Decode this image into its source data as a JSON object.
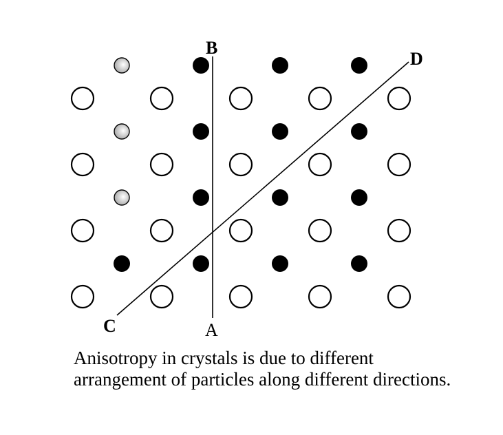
{
  "labels": {
    "a": "A",
    "b": "B",
    "c": "C",
    "d": "D"
  },
  "caption": "Anisotropy in crystals is due to different arrangement of particles along different directions.",
  "particles": {
    "open_rows": 4,
    "open_cols": 5,
    "small_rows": 4,
    "small_cols": 4,
    "grey_count": 3
  },
  "colors": {
    "filled": "#000000",
    "open": "#ffffff",
    "grey": "#bfbfbf"
  }
}
